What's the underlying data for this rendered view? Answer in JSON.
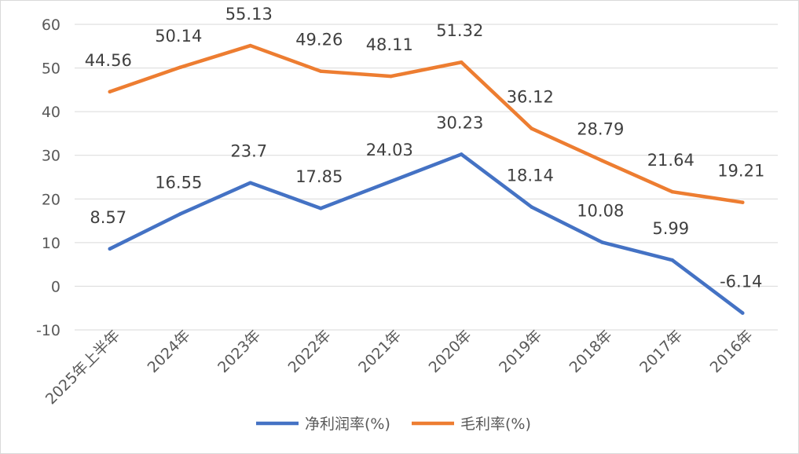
{
  "chart_data": {
    "type": "line",
    "categories": [
      "2025年上半年",
      "2024年",
      "2023年",
      "2022年",
      "2021年",
      "2020年",
      "2019年",
      "2018年",
      "2017年",
      "2016年"
    ],
    "series": [
      {
        "name": "净利润率(%)",
        "color": "#4472c4",
        "values": [
          8.57,
          16.55,
          23.7,
          17.85,
          24.03,
          30.23,
          18.14,
          10.08,
          5.99,
          -6.14
        ],
        "labels": [
          "8.57",
          "16.55",
          "23.7",
          "17.85",
          "24.03",
          "30.23",
          "18.14",
          "10.08",
          "5.99",
          "-6.14"
        ]
      },
      {
        "name": "毛利率(%)",
        "color": "#ed7d31",
        "values": [
          44.56,
          50.14,
          55.13,
          49.26,
          48.11,
          51.32,
          36.12,
          28.79,
          21.64,
          19.21
        ],
        "labels": [
          "44.56",
          "50.14",
          "55.13",
          "49.26",
          "48.11",
          "51.32",
          "36.12",
          "28.79",
          "21.64",
          "19.21"
        ]
      }
    ],
    "ylim": [
      -10,
      60
    ],
    "yticks": [
      -10,
      0,
      10,
      20,
      30,
      40,
      50,
      60
    ],
    "grid": true,
    "legend": "bottom"
  }
}
